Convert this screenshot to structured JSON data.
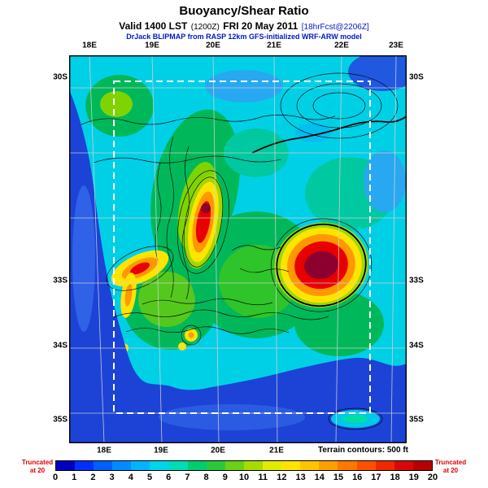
{
  "header": {
    "title": "Buoyancy/Shear Ratio",
    "valid_prefix": "Valid 1400 LST",
    "valid_zulu": "(1200Z)",
    "valid_date": "FRI 20 May 2011",
    "forecast_tag": "[18hrFcst@2206Z]",
    "model_line": "DrJack BLIPMAP from RASP 12km GFS-initialized WRF-ARW model"
  },
  "footer": {
    "terrain_note": "Terrain contours: 500 ft",
    "truncated_line1": "Truncated",
    "truncated_line2": "at 20"
  },
  "chart_data": {
    "type": "heatmap",
    "title": "Buoyancy/Shear Ratio",
    "subtitle": "Valid 1400 LST (1200Z) FRI 20 May 2011 [18hrFcst@2206Z]",
    "source": "DrJack BLIPMAP from RASP 12km GFS-initialized WRF-ARW model",
    "x_ticks_top": [
      "18E",
      "19E",
      "20E",
      "21E",
      "22E",
      "23E"
    ],
    "x_ticks_bottom": [
      "18E",
      "19E",
      "20E",
      "21E"
    ],
    "y_ticks_left": [
      "30S",
      "33S",
      "34S",
      "35S"
    ],
    "y_ticks_right": [
      "30S",
      "33S",
      "34S",
      "35S"
    ],
    "grid_spacing": "1 degree lat/lon graticule",
    "inner_domain_boundary": "white dashed rectangle approx 18.4E-22.6E, 30.4S-35.0S",
    "colorbar": {
      "range": [
        0,
        20
      ],
      "label_values": [
        "0",
        "1",
        "2",
        "3",
        "4",
        "5",
        "6",
        "7",
        "8",
        "9",
        "10",
        "11",
        "12",
        "13",
        "14",
        "15",
        "16",
        "17",
        "18",
        "19",
        "20"
      ],
      "segment_colors": [
        "#0000c0",
        "#0030ff",
        "#0060ff",
        "#008cff",
        "#00b4ff",
        "#00d4e8",
        "#00dcb4",
        "#00cc70",
        "#2cc83c",
        "#6cd014",
        "#a8dc00",
        "#e0ec00",
        "#ffe400",
        "#ffc400",
        "#ffa000",
        "#ff7800",
        "#ff5000",
        "#f02800",
        "#d80808",
        "#b80000"
      ],
      "truncated_note": "Truncated at 20"
    },
    "terrain_note": "Terrain contours: 500 ft",
    "maxima": [
      {
        "lon": "21.8E",
        "lat": "32.7S",
        "value": ">20 (truncated, dark maroon core)"
      },
      {
        "lon": "19.9E",
        "lat": "32.0S",
        "value": "~16-20 (elongated N-S ridge maximum)"
      },
      {
        "lon": "18.8E",
        "lat": "32.8S",
        "value": "~14-18 (west-coast maximum)"
      },
      {
        "lon": "19.7E",
        "lat": "33.8S",
        "value": "~10-12 (small local maximum)"
      },
      {
        "lon": "18.9E",
        "lat": "34.0S",
        "value": "~10-14 (small coastal maximum)"
      }
    ],
    "typical_values": {
      "ocean": "0-3 (blue)",
      "land": "4-8 (cyan/green)"
    }
  }
}
